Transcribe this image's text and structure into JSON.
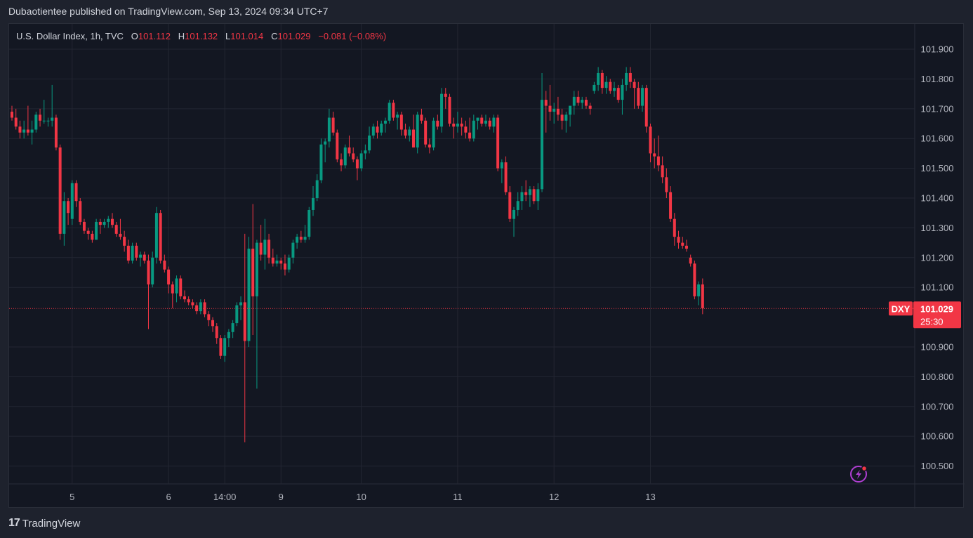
{
  "publisher_line": "Dubaotientee published on TradingView.com, Sep 13, 2024 09:34 UTC+7",
  "footer": {
    "brand": "TradingView",
    "logo_glyph": "17"
  },
  "colors": {
    "up": "#089981",
    "down": "#f23645",
    "grid": "#232632",
    "text": "#b2b5be",
    "background": "#131722"
  },
  "icons": {
    "flash": "lightning-icon"
  },
  "chart_data": {
    "type": "candlestick",
    "symbol": "U.S. Dollar Index, 1h, TVC",
    "ohlc_labels": {
      "o": "O",
      "h": "H",
      "l": "L",
      "c": "C"
    },
    "ohlc": {
      "open": "101.112",
      "high": "101.132",
      "low": "101.014",
      "close": "101.029",
      "change": "−0.081 (−0.08%)"
    },
    "last_price": {
      "ticker": "DXY",
      "price": "101.029",
      "countdown": "25:30",
      "value": 101.029
    },
    "ylim": [
      100.44,
      101.985
    ],
    "y_ticks": [
      "101.900",
      "101.800",
      "101.700",
      "101.600",
      "101.500",
      "101.400",
      "101.300",
      "101.200",
      "101.100",
      "100.900",
      "100.800",
      "100.700",
      "100.600",
      "100.500"
    ],
    "x_ticks": [
      {
        "label": "5",
        "index": 15
      },
      {
        "label": "6",
        "index": 39
      },
      {
        "label": "14:00",
        "index": 53
      },
      {
        "label": "9",
        "index": 67
      },
      {
        "label": "10",
        "index": 87
      },
      {
        "label": "11",
        "index": 111
      },
      {
        "label": "12",
        "index": 135
      },
      {
        "label": "13",
        "index": 159
      }
    ],
    "candles": [
      [
        101.69,
        101.71,
        101.66,
        101.67
      ],
      [
        101.67,
        101.7,
        101.63,
        101.64
      ],
      [
        101.64,
        101.66,
        101.6,
        101.62
      ],
      [
        101.62,
        101.66,
        101.6,
        101.63
      ],
      [
        101.63,
        101.71,
        101.61,
        101.62
      ],
      [
        101.62,
        101.66,
        101.58,
        101.63
      ],
      [
        101.63,
        101.69,
        101.62,
        101.68
      ],
      [
        101.68,
        101.7,
        101.64,
        101.66
      ],
      [
        101.66,
        101.73,
        101.65,
        101.66
      ],
      [
        101.66,
        101.67,
        101.64,
        101.66
      ],
      [
        101.66,
        101.78,
        101.64,
        101.67
      ],
      [
        101.67,
        101.68,
        101.56,
        101.57
      ],
      [
        101.57,
        101.58,
        101.26,
        101.28
      ],
      [
        101.28,
        101.42,
        101.24,
        101.39
      ],
      [
        101.39,
        101.4,
        101.31,
        101.35
      ],
      [
        101.33,
        101.46,
        101.31,
        101.45
      ],
      [
        101.45,
        101.46,
        101.37,
        101.39
      ],
      [
        101.39,
        101.4,
        101.31,
        101.32
      ],
      [
        101.32,
        101.33,
        101.28,
        101.29
      ],
      [
        101.29,
        101.3,
        101.26,
        101.28
      ],
      [
        101.28,
        101.29,
        101.25,
        101.26
      ],
      [
        101.26,
        101.33,
        101.26,
        101.32
      ],
      [
        101.32,
        101.33,
        101.28,
        101.31
      ],
      [
        101.31,
        101.33,
        101.3,
        101.32
      ],
      [
        101.32,
        101.34,
        101.3,
        101.33
      ],
      [
        101.33,
        101.35,
        101.3,
        101.31
      ],
      [
        101.31,
        101.32,
        101.27,
        101.28
      ],
      [
        101.28,
        101.33,
        101.26,
        101.27
      ],
      [
        101.27,
        101.29,
        101.22,
        101.24
      ],
      [
        101.24,
        101.26,
        101.18,
        101.19
      ],
      [
        101.19,
        101.25,
        101.18,
        101.24
      ],
      [
        101.24,
        101.25,
        101.19,
        101.2
      ],
      [
        101.2,
        101.22,
        101.17,
        101.21
      ],
      [
        101.21,
        101.22,
        101.18,
        101.19
      ],
      [
        101.19,
        101.21,
        100.96,
        101.11
      ],
      [
        101.11,
        101.22,
        101.1,
        101.2
      ],
      [
        101.2,
        101.37,
        101.18,
        101.35
      ],
      [
        101.35,
        101.36,
        101.18,
        101.19
      ],
      [
        101.19,
        101.21,
        101.15,
        101.16
      ],
      [
        101.16,
        101.17,
        101.08,
        101.11
      ],
      [
        101.11,
        101.12,
        101.03,
        101.08
      ],
      [
        101.08,
        101.14,
        101.05,
        101.13
      ],
      [
        101.13,
        101.14,
        101.06,
        101.07
      ],
      [
        101.07,
        101.09,
        101.05,
        101.06
      ],
      [
        101.06,
        101.07,
        101.04,
        101.05
      ],
      [
        101.05,
        101.06,
        101.03,
        101.04
      ],
      [
        101.04,
        101.05,
        101.01,
        101.02
      ],
      [
        101.02,
        101.06,
        101.01,
        101.05
      ],
      [
        101.05,
        101.06,
        101.0,
        101.01
      ],
      [
        101.01,
        101.02,
        100.97,
        100.99
      ],
      [
        100.99,
        101.0,
        100.95,
        100.97
      ],
      [
        100.97,
        100.98,
        100.91,
        100.93
      ],
      [
        100.93,
        100.94,
        100.86,
        100.87
      ],
      [
        100.87,
        100.94,
        100.85,
        100.93
      ],
      [
        100.93,
        100.96,
        100.9,
        100.95
      ],
      [
        100.95,
        100.99,
        100.93,
        100.98
      ],
      [
        100.98,
        101.05,
        100.97,
        101.04
      ],
      [
        101.04,
        101.07,
        100.99,
        101.05
      ],
      [
        101.05,
        101.28,
        100.58,
        100.92
      ],
      [
        100.92,
        101.27,
        100.9,
        101.23
      ],
      [
        101.23,
        101.38,
        100.94,
        101.07
      ],
      [
        101.07,
        101.26,
        100.76,
        101.25
      ],
      [
        101.25,
        101.31,
        101.19,
        101.21
      ],
      [
        101.21,
        101.33,
        101.16,
        101.26
      ],
      [
        101.26,
        101.28,
        101.18,
        101.2
      ],
      [
        101.2,
        101.23,
        101.17,
        101.18
      ],
      [
        101.18,
        101.21,
        101.17,
        101.19
      ],
      [
        101.19,
        101.2,
        101.16,
        101.18
      ],
      [
        101.18,
        101.21,
        101.14,
        101.16
      ],
      [
        101.16,
        101.21,
        101.15,
        101.2
      ],
      [
        101.2,
        101.26,
        101.18,
        101.25
      ],
      [
        101.25,
        101.28,
        101.23,
        101.27
      ],
      [
        101.27,
        101.29,
        101.25,
        101.26
      ],
      [
        101.26,
        101.31,
        101.25,
        101.27
      ],
      [
        101.27,
        101.37,
        101.26,
        101.36
      ],
      [
        101.36,
        101.44,
        101.34,
        101.4
      ],
      [
        101.4,
        101.48,
        101.39,
        101.46
      ],
      [
        101.46,
        101.6,
        101.45,
        101.58
      ],
      [
        101.58,
        101.6,
        101.52,
        101.59
      ],
      [
        101.59,
        101.7,
        101.57,
        101.67
      ],
      [
        101.67,
        101.69,
        101.61,
        101.62
      ],
      [
        101.62,
        101.63,
        101.52,
        101.53
      ],
      [
        101.53,
        101.55,
        101.49,
        101.51
      ],
      [
        101.51,
        101.58,
        101.5,
        101.57
      ],
      [
        101.57,
        101.61,
        101.54,
        101.55
      ],
      [
        101.55,
        101.57,
        101.52,
        101.53
      ],
      [
        101.53,
        101.54,
        101.46,
        101.5
      ],
      [
        101.5,
        101.56,
        101.49,
        101.55
      ],
      [
        101.55,
        101.58,
        101.53,
        101.56
      ],
      [
        101.56,
        101.64,
        101.55,
        101.61
      ],
      [
        101.61,
        101.65,
        101.6,
        101.64
      ],
      [
        101.64,
        101.66,
        101.6,
        101.62
      ],
      [
        101.62,
        101.66,
        101.61,
        101.65
      ],
      [
        101.65,
        101.67,
        101.62,
        101.66
      ],
      [
        101.66,
        101.73,
        101.65,
        101.72
      ],
      [
        101.72,
        101.73,
        101.66,
        101.67
      ],
      [
        101.67,
        101.69,
        101.63,
        101.68
      ],
      [
        101.68,
        101.69,
        101.61,
        101.63
      ],
      [
        101.63,
        101.65,
        101.6,
        101.61
      ],
      [
        101.61,
        101.64,
        101.59,
        101.63
      ],
      [
        101.63,
        101.68,
        101.57,
        101.57
      ],
      [
        101.57,
        101.69,
        101.55,
        101.68
      ],
      [
        101.68,
        101.7,
        101.65,
        101.66
      ],
      [
        101.66,
        101.67,
        101.57,
        101.58
      ],
      [
        101.58,
        101.6,
        101.55,
        101.57
      ],
      [
        101.57,
        101.67,
        101.56,
        101.66
      ],
      [
        101.66,
        101.68,
        101.63,
        101.64
      ],
      [
        101.64,
        101.77,
        101.62,
        101.75
      ],
      [
        101.75,
        101.77,
        101.7,
        101.74
      ],
      [
        101.74,
        101.75,
        101.64,
        101.65
      ],
      [
        101.65,
        101.67,
        101.6,
        101.64
      ],
      [
        101.64,
        101.69,
        101.62,
        101.65
      ],
      [
        101.65,
        101.67,
        101.61,
        101.64
      ],
      [
        101.64,
        101.66,
        101.6,
        101.62
      ],
      [
        101.62,
        101.67,
        101.59,
        101.6
      ],
      [
        101.6,
        101.68,
        101.59,
        101.66
      ],
      [
        101.66,
        101.67,
        101.63,
        101.67
      ],
      [
        101.67,
        101.68,
        101.64,
        101.65
      ],
      [
        101.65,
        101.68,
        101.64,
        101.66
      ],
      [
        101.66,
        101.67,
        101.63,
        101.64
      ],
      [
        101.64,
        101.68,
        101.62,
        101.67
      ],
      [
        101.67,
        101.68,
        101.49,
        101.5
      ],
      [
        101.5,
        101.53,
        101.45,
        101.52
      ],
      [
        101.52,
        101.54,
        101.41,
        101.42
      ],
      [
        101.42,
        101.44,
        101.32,
        101.33
      ],
      [
        101.33,
        101.37,
        101.27,
        101.36
      ],
      [
        101.36,
        101.42,
        101.34,
        101.39
      ],
      [
        101.39,
        101.44,
        101.36,
        101.42
      ],
      [
        101.42,
        101.46,
        101.39,
        101.41
      ],
      [
        101.41,
        101.44,
        101.37,
        101.43
      ],
      [
        101.43,
        101.44,
        101.38,
        101.39
      ],
      [
        101.39,
        101.45,
        101.36,
        101.43
      ],
      [
        101.43,
        101.82,
        101.42,
        101.73
      ],
      [
        101.73,
        101.76,
        101.62,
        101.71
      ],
      [
        101.71,
        101.78,
        101.66,
        101.69
      ],
      [
        101.69,
        101.72,
        101.65,
        101.7
      ],
      [
        101.7,
        101.74,
        101.66,
        101.68
      ],
      [
        101.68,
        101.7,
        101.63,
        101.66
      ],
      [
        101.66,
        101.69,
        101.62,
        101.68
      ],
      [
        101.68,
        101.7,
        101.64,
        101.71
      ],
      [
        101.71,
        101.76,
        101.68,
        101.74
      ],
      [
        101.74,
        101.76,
        101.71,
        101.72
      ],
      [
        101.72,
        101.74,
        101.7,
        101.73
      ],
      [
        101.73,
        101.74,
        101.7,
        101.71
      ],
      [
        101.71,
        101.72,
        101.68,
        101.7
      ],
      [
        101.76,
        101.79,
        101.75,
        101.78
      ],
      [
        101.78,
        101.84,
        101.76,
        101.82
      ],
      [
        101.82,
        101.83,
        101.75,
        101.77
      ],
      [
        101.77,
        101.81,
        101.75,
        101.79
      ],
      [
        101.79,
        101.8,
        101.75,
        101.76
      ],
      [
        101.76,
        101.79,
        101.74,
        101.77
      ],
      [
        101.77,
        101.78,
        101.72,
        101.73
      ],
      [
        101.73,
        101.8,
        101.68,
        101.78
      ],
      [
        101.78,
        101.84,
        101.76,
        101.82
      ],
      [
        101.82,
        101.84,
        101.77,
        101.79
      ],
      [
        101.79,
        101.8,
        101.7,
        101.77
      ],
      [
        101.77,
        101.79,
        101.7,
        101.71
      ],
      [
        101.71,
        101.78,
        101.69,
        101.77
      ],
      [
        101.77,
        101.78,
        101.62,
        101.64
      ],
      [
        101.64,
        101.65,
        101.52,
        101.55
      ],
      [
        101.55,
        101.6,
        101.5,
        101.54
      ],
      [
        101.54,
        101.61,
        101.49,
        101.51
      ],
      [
        101.51,
        101.54,
        101.45,
        101.47
      ],
      [
        101.47,
        101.5,
        101.4,
        101.42
      ],
      [
        101.42,
        101.44,
        101.32,
        101.33
      ],
      [
        101.33,
        101.35,
        101.24,
        101.27
      ],
      [
        101.27,
        101.29,
        101.23,
        101.25
      ],
      [
        101.25,
        101.27,
        101.23,
        101.24
      ],
      [
        101.24,
        101.26,
        101.22,
        101.23
      ],
      [
        101.2,
        101.21,
        101.17,
        101.18
      ],
      [
        101.18,
        101.19,
        101.06,
        101.07
      ],
      [
        101.07,
        101.12,
        101.04,
        101.11
      ],
      [
        101.11,
        101.13,
        101.01,
        101.03
      ]
    ]
  }
}
